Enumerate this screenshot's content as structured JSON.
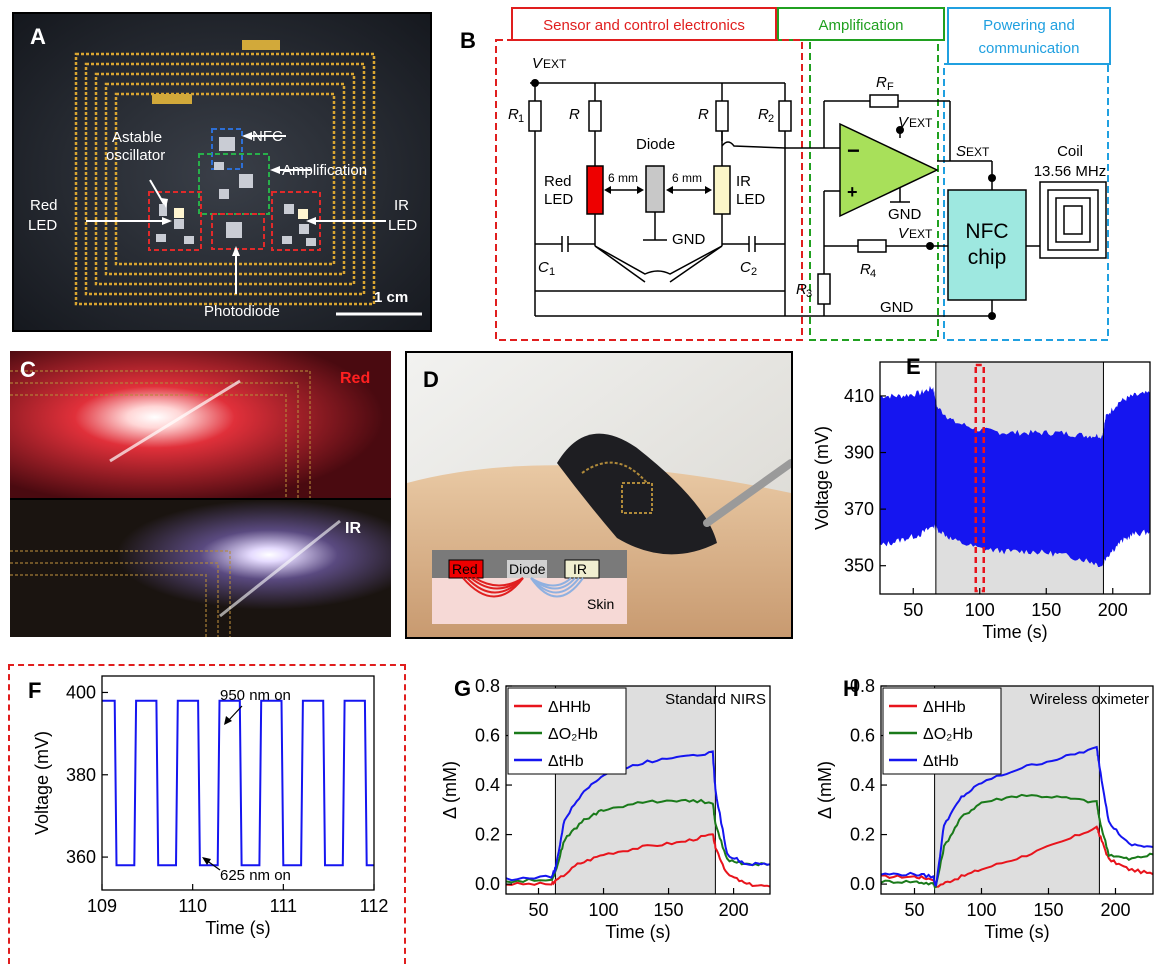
{
  "panels": {
    "A": {
      "letter": "A",
      "labels": {
        "astable": [
          "Astable",
          "oscillator"
        ],
        "nfc": "NFC",
        "amplification": "Amplification",
        "red_led": [
          "Red",
          "LED"
        ],
        "ir_led": [
          "IR",
          "LED"
        ],
        "photodiode": "Photodiode",
        "scale": "1 cm"
      }
    },
    "B": {
      "letter": "B",
      "sections": {
        "sensor": "Sensor and control electronics",
        "amplification": "Amplification",
        "powering": [
          "Powering and",
          "communication"
        ]
      },
      "components": {
        "vext": "V",
        "vext_sub": "EXT",
        "r1": "R",
        "r1_sub": "1",
        "r": "R",
        "r2": "R",
        "r2_sub": "2",
        "rf": "R",
        "rf_sub": "F",
        "r3": "R",
        "r3_sub": "3",
        "r4": "R",
        "r4_sub": "4",
        "c1": "C",
        "c1_sub": "1",
        "c2": "C",
        "c2_sub": "2",
        "sext": "S",
        "sext_sub": "EXT",
        "diode": "Diode",
        "red_led": [
          "Red",
          "LED"
        ],
        "ir_led": [
          "IR",
          "LED"
        ],
        "gap": "6 mm",
        "gnd": "GND",
        "minus": "−",
        "plus": "+",
        "nfc_chip": [
          "NFC",
          "chip"
        ],
        "coil": [
          "Coil",
          "13.56 MHz"
        ]
      }
    },
    "C": {
      "letter": "C",
      "red": "Red",
      "ir": "IR"
    },
    "D": {
      "letter": "D",
      "red": "Red",
      "diode": "Diode",
      "ir": "IR",
      "skin": "Skin"
    },
    "E": {
      "letter": "E"
    },
    "F": {
      "letter": "F",
      "annot_top": "950 nm on",
      "annot_bottom": "625 nm on"
    },
    "G": {
      "letter": "G"
    },
    "H": {
      "letter": "H"
    }
  },
  "colors": {
    "red": "#e8141c",
    "green": "#1a7a1a",
    "blue": "#1515f0",
    "shade": "#dedede",
    "sensor_box": "#e01e1e",
    "amp_box": "#20a020",
    "power_box": "#20a0e0",
    "opamp": "#a8e05a",
    "nfc": "#9ee8e0",
    "ir_led": "#fbf6c8"
  },
  "chart_data": [
    {
      "id": "E",
      "type": "area",
      "xlabel": "Time (s)",
      "ylabel": "Voltage (mV)",
      "xlim": [
        25,
        228
      ],
      "ylim": [
        340,
        422
      ],
      "xticks": [
        50,
        100,
        150,
        200
      ],
      "yticks": [
        350,
        370,
        390,
        410
      ],
      "shaded_x": [
        67,
        193
      ],
      "highlight_x": [
        97,
        103
      ],
      "series": [
        {
          "x": [
            25,
            40,
            55,
            65,
            68,
            80,
            100,
            120,
            140,
            160,
            180,
            192,
            195,
            205,
            215,
            228
          ],
          "upper": [
            410,
            410,
            411,
            413,
            406,
            401,
            398,
            397,
            397,
            397,
            396,
            396,
            403,
            408,
            410,
            411
          ],
          "lower": [
            357,
            359,
            361,
            364,
            363,
            359,
            356,
            355,
            355,
            354,
            352,
            350,
            353,
            358,
            361,
            362
          ]
        }
      ]
    },
    {
      "id": "F",
      "type": "line",
      "xlabel": "Time (s)",
      "ylabel": "Voltage (mV)",
      "xlim": [
        109,
        112
      ],
      "ylim": [
        352,
        404
      ],
      "xticks": [
        109,
        110,
        111,
        112
      ],
      "yticks": [
        360,
        380,
        400
      ],
      "high": 398,
      "low": 358,
      "period": 0.46,
      "first_fall": 109.14,
      "duty_low": 0.47,
      "series": [
        {
          "color": "blue"
        }
      ]
    },
    {
      "id": "G",
      "type": "line",
      "xlabel": "Time (s)",
      "ylabel": "Δ (mM)",
      "annotation": "Standard NIRS",
      "xlim": [
        25,
        228
      ],
      "ylim": [
        -0.04,
        0.8
      ],
      "xticks": [
        50,
        100,
        150,
        200
      ],
      "yticks": [
        0.0,
        0.2,
        0.4,
        0.6,
        0.8
      ],
      "shaded_x": [
        63,
        186
      ],
      "series": [
        {
          "name": "ΔHHb",
          "color": "red",
          "x": [
            25,
            60,
            63,
            80,
            100,
            130,
            160,
            184,
            186,
            195,
            210,
            228
          ],
          "y": [
            0.0,
            0.0,
            0.01,
            0.08,
            0.12,
            0.15,
            0.17,
            0.2,
            0.15,
            0.04,
            0.0,
            -0.01
          ]
        },
        {
          "name": "ΔO₂Hb",
          "color": "green",
          "x": [
            25,
            60,
            63,
            70,
            85,
            100,
            130,
            160,
            184,
            186,
            195,
            210,
            228
          ],
          "y": [
            0.01,
            0.02,
            0.05,
            0.18,
            0.26,
            0.3,
            0.33,
            0.34,
            0.33,
            0.24,
            0.1,
            0.08,
            0.08
          ]
        },
        {
          "name": "ΔtHb",
          "color": "blue",
          "x": [
            25,
            60,
            63,
            70,
            85,
            100,
            130,
            160,
            184,
            186,
            195,
            210,
            228
          ],
          "y": [
            0.02,
            0.03,
            0.06,
            0.26,
            0.38,
            0.44,
            0.49,
            0.52,
            0.53,
            0.38,
            0.12,
            0.08,
            0.08
          ]
        }
      ]
    },
    {
      "id": "H",
      "type": "line",
      "xlabel": "Time (s)",
      "ylabel": "Δ (mM)",
      "annotation": "Wireless oximeter",
      "xlim": [
        25,
        228
      ],
      "ylim": [
        -0.04,
        0.8
      ],
      "xticks": [
        50,
        100,
        150,
        200
      ],
      "yticks": [
        0.0,
        0.2,
        0.4,
        0.6,
        0.8
      ],
      "shaded_x": [
        65,
        188
      ],
      "series": [
        {
          "name": "ΔHHb",
          "color": "red",
          "x": [
            25,
            50,
            64,
            66,
            80,
            100,
            130,
            160,
            186,
            188,
            195,
            210,
            228
          ],
          "y": [
            0.03,
            0.03,
            0.02,
            -0.01,
            0.02,
            0.06,
            0.11,
            0.17,
            0.23,
            0.2,
            0.1,
            0.06,
            0.04
          ]
        },
        {
          "name": "ΔO₂Hb",
          "color": "green",
          "x": [
            25,
            50,
            64,
            66,
            72,
            85,
            100,
            130,
            160,
            186,
            188,
            195,
            210,
            228
          ],
          "y": [
            0.01,
            0.01,
            0.0,
            -0.01,
            0.15,
            0.27,
            0.33,
            0.36,
            0.35,
            0.33,
            0.26,
            0.12,
            0.1,
            0.12
          ]
        },
        {
          "name": "ΔtHb",
          "color": "blue",
          "x": [
            25,
            50,
            64,
            66,
            72,
            85,
            100,
            130,
            160,
            186,
            188,
            195,
            210,
            228
          ],
          "y": [
            0.04,
            0.04,
            0.03,
            -0.01,
            0.24,
            0.35,
            0.41,
            0.47,
            0.51,
            0.55,
            0.48,
            0.25,
            0.16,
            0.15
          ]
        }
      ]
    }
  ]
}
